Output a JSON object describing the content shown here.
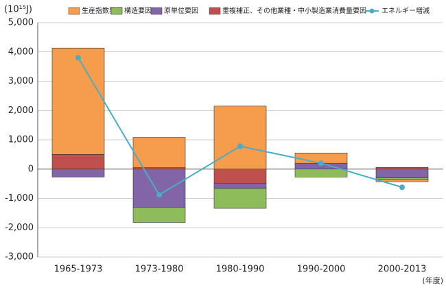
{
  "chart_data": {
    "type": "bar",
    "y_label": "(10¹⁵J)",
    "x_label": "(年度)",
    "categories": [
      "1965-1973",
      "1973-1980",
      "1980-1990",
      "1990-2000",
      "2000-2013"
    ],
    "series": [
      {
        "name": "生産指数要因",
        "color": "#f59d4c",
        "values": [
          3630,
          1030,
          2150,
          350,
          -80
        ]
      },
      {
        "name": "構造要因",
        "color": "#8fbc5a",
        "values": [
          0,
          -520,
          -680,
          -270,
          -50
        ]
      },
      {
        "name": "原単位要因",
        "color": "#8165a6",
        "values": [
          -270,
          -1300,
          -180,
          200,
          -300
        ]
      },
      {
        "name": "重複補正、その他業種・中小製造業消費量要因",
        "color": "#c0504d",
        "values": [
          500,
          50,
          -480,
          0,
          60
        ]
      },
      {
        "name": "エネルギー増減",
        "color": "#4bacc6",
        "type": "line",
        "values": [
          3800,
          -880,
          780,
          200,
          -620
        ]
      }
    ],
    "ylim": [
      -3000,
      5000
    ],
    "yticks": [
      {
        "value": 5000,
        "label": "5,000"
      },
      {
        "value": 4000,
        "label": "4,000"
      },
      {
        "value": 3000,
        "label": "3,000"
      },
      {
        "value": 2000,
        "label": "2,000"
      },
      {
        "value": 1000,
        "label": "1,000"
      },
      0,
      {
        "value": -1000,
        "label": "-1,000"
      },
      {
        "value": -2000,
        "label": "-2,000"
      },
      {
        "value": -3000,
        "label": "-3,000"
      }
    ],
    "grid": true
  }
}
